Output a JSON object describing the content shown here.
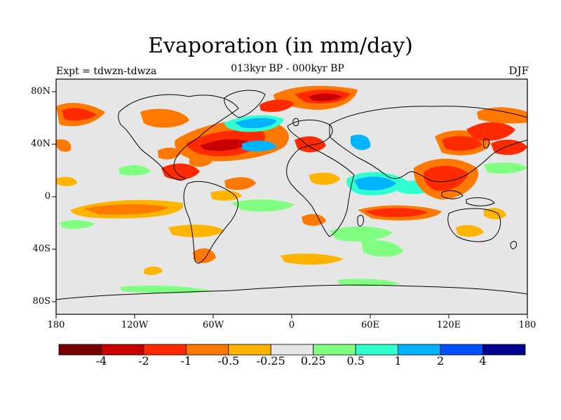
{
  "title": "Evaporation (in mm/day)",
  "subtitle": "013kyr BP - 000kyr BP",
  "left_label": "Expt = tdwzn-tdwza",
  "season": "DJF",
  "lat_labels": [
    "80N",
    "40N",
    "0",
    "40S",
    "80S"
  ],
  "lon_labels": [
    "180",
    "120W",
    "60W",
    "0",
    "60E",
    "120E",
    "180"
  ],
  "colorbar": {
    "colors": [
      "#7a0000",
      "#c80000",
      "#ff2a00",
      "#ff7800",
      "#ffb400",
      "#e6e6e6",
      "#80ff80",
      "#30ffd0",
      "#00b4ff",
      "#0050ff",
      "#000090"
    ],
    "labels": [
      "-4",
      "-2",
      "-1",
      "-0.5",
      "-0.25",
      "0.25",
      "0.5",
      "1",
      "2",
      "4"
    ]
  },
  "map_background": "#e6e6e6"
}
